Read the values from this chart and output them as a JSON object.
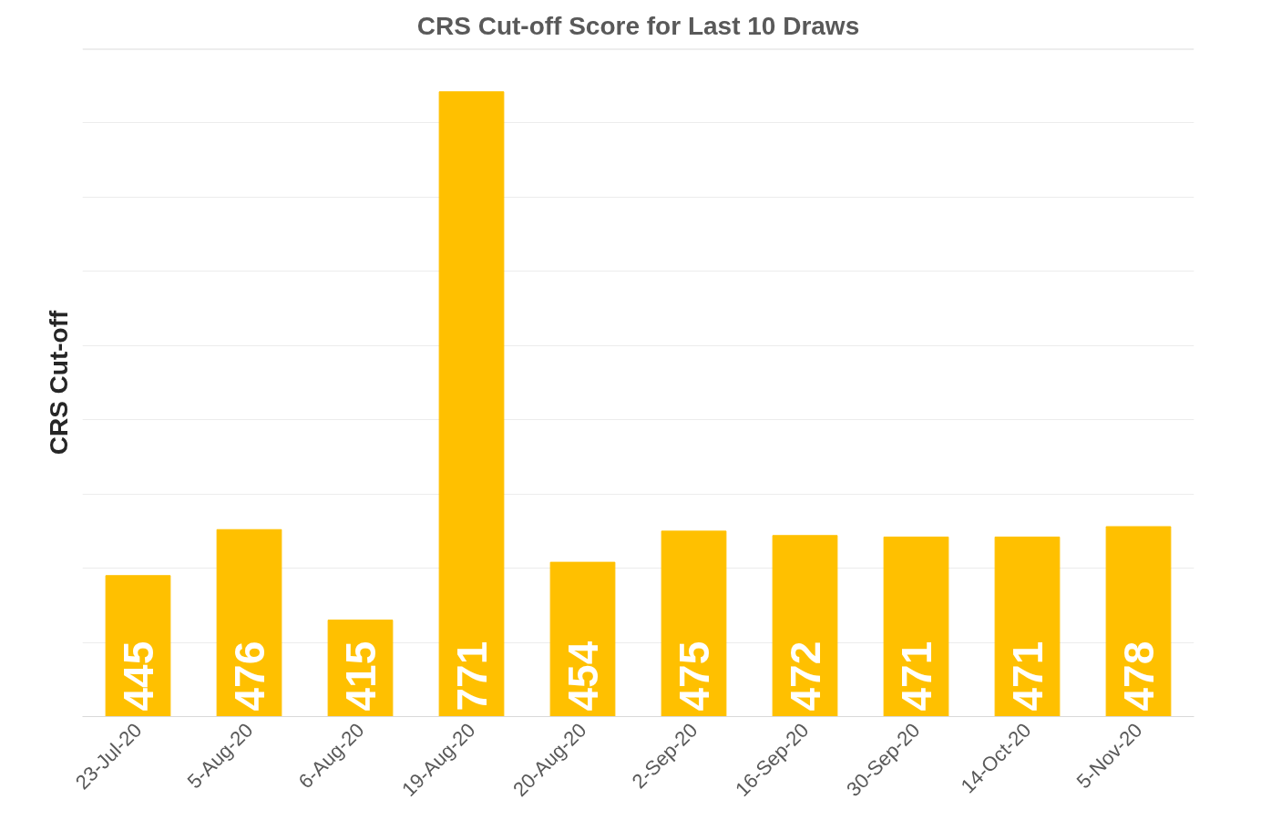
{
  "chart_data": {
    "type": "bar",
    "title": "CRS Cut-off Score for Last 10 Draws",
    "ylabel": "CRS Cut-off",
    "categories": [
      "23-Jul-20",
      "5-Aug-20",
      "6-Aug-20",
      "19-Aug-20",
      "20-Aug-20",
      "2-Sep-20",
      "16-Sep-20",
      "30-Sep-20",
      "14-Oct-20",
      "5-Nov-20"
    ],
    "values": [
      445,
      476,
      415,
      771,
      454,
      475,
      472,
      471,
      471,
      478
    ],
    "color": "#ffc000",
    "data_labels": true,
    "ylim": [
      350,
      800
    ],
    "yticks": [
      {
        "value": 350,
        "label": null
      },
      {
        "value": 400,
        "label": null
      },
      {
        "value": 450,
        "label": null
      },
      {
        "value": 500,
        "label": null
      },
      {
        "value": 550,
        "label": null
      },
      {
        "value": 600,
        "label": null
      },
      {
        "value": 650,
        "label": null
      },
      {
        "value": 700,
        "label": null
      },
      {
        "value": 750,
        "label": null
      },
      {
        "value": 800,
        "label": null
      }
    ],
    "tick_labels": "x",
    "grid": "y"
  }
}
